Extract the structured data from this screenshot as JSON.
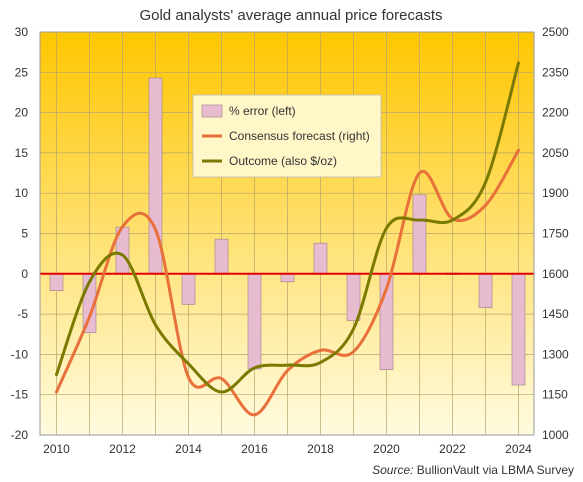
{
  "chart_data": {
    "type": "bar+line",
    "title": "Gold analysts' average annual price forecasts",
    "source_label": "Source:",
    "source_text": "BullionVault via LBMA Survey",
    "categories": [
      2010,
      2011,
      2012,
      2013,
      2014,
      2015,
      2016,
      2017,
      2018,
      2019,
      2020,
      2021,
      2022,
      2023,
      2024
    ],
    "x_tick_labels": [
      "2010",
      "2012",
      "2014",
      "2016",
      "2018",
      "2020",
      "2022",
      "2024"
    ],
    "y_left": {
      "range": [
        -20,
        30
      ],
      "ticks": [
        -20,
        -15,
        -10,
        -5,
        0,
        5,
        10,
        15,
        20,
        25,
        30
      ]
    },
    "y_right": {
      "range": [
        1000,
        2500
      ],
      "ticks": [
        1000,
        1150,
        1300,
        1450,
        1600,
        1750,
        1900,
        2050,
        2200,
        2350,
        2500
      ]
    },
    "grid": true,
    "legend_position": "upper-center",
    "series": [
      {
        "name": "% error (left)",
        "type": "bar",
        "axis": "left",
        "color": "#e8bcd0",
        "values": [
          -2.1,
          -7.3,
          5.8,
          24.3,
          -3.8,
          4.3,
          -11.8,
          -1.0,
          3.8,
          -5.8,
          -11.9,
          9.8,
          0.1,
          -4.2,
          -13.8
        ]
      },
      {
        "name": "Consensus forecast (right)",
        "type": "line",
        "axis": "right",
        "color": "#e8703a",
        "values": [
          1160,
          1440,
          1775,
          1765,
          1215,
          1210,
          1075,
          1240,
          1315,
          1310,
          1545,
          1975,
          1805,
          1855,
          2060
        ]
      },
      {
        "name": "Outcome (also $/oz)",
        "type": "line",
        "axis": "right",
        "color": "#7a7a00",
        "values": [
          1225,
          1570,
          1670,
          1410,
          1265,
          1160,
          1250,
          1260,
          1270,
          1395,
          1770,
          1800,
          1800,
          1940,
          2385
        ]
      }
    ]
  }
}
